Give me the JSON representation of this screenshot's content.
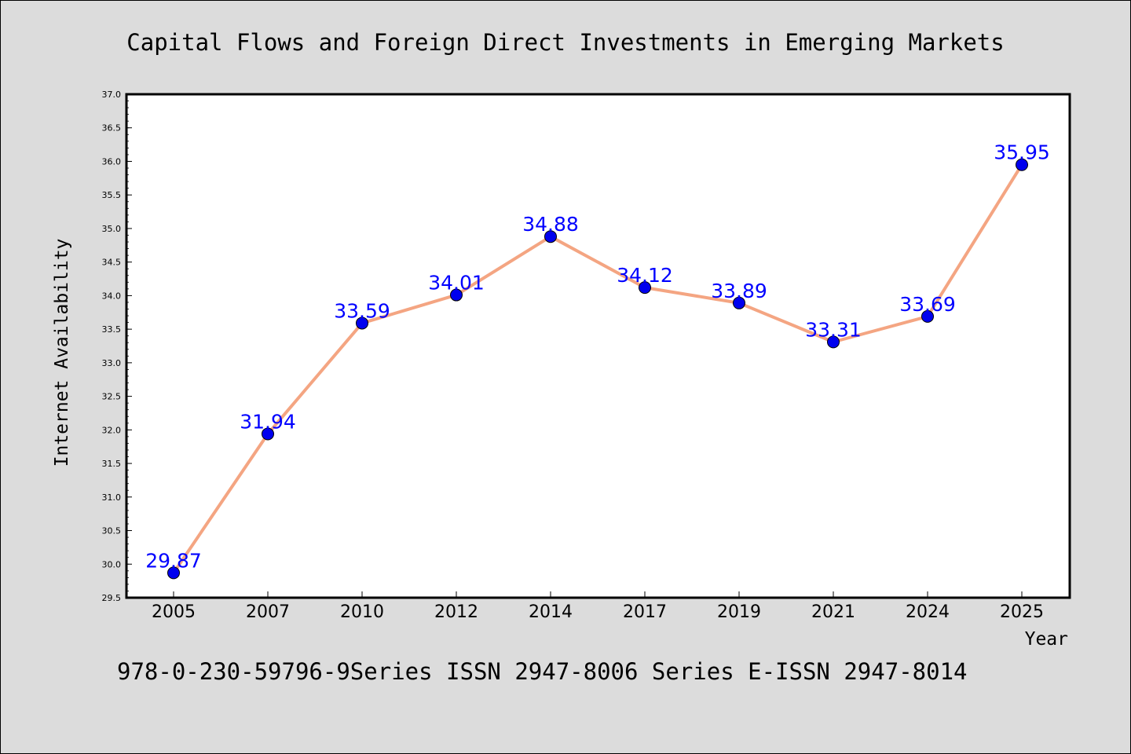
{
  "chart_data": {
    "type": "line",
    "title": "Capital Flows and Foreign Direct Investments in Emerging Markets",
    "xlabel": "Year",
    "ylabel": "Internet Availability",
    "categories": [
      "2005",
      "2007",
      "2010",
      "2012",
      "2014",
      "2017",
      "2019",
      "2021",
      "2024",
      "2025"
    ],
    "series": [
      {
        "values": [
          29.87,
          31.94,
          33.59,
          34.01,
          34.88,
          34.12,
          33.89,
          33.31,
          33.69,
          35.95
        ],
        "value_labels": [
          "29.87",
          "31.94",
          "33.59",
          "34.01",
          "34.88",
          "34.12",
          "33.89",
          "33.31",
          "33.69",
          "35.95"
        ]
      }
    ],
    "ylim": [
      29.5,
      37.0
    ],
    "yticks": [
      "29.5",
      "30.0",
      "30.5",
      "31.0",
      "31.5",
      "32.0",
      "32.5",
      "33.0",
      "33.5",
      "34.0",
      "34.5",
      "35.0",
      "35.5",
      "36.0",
      "36.5",
      "37.0"
    ],
    "grid": false,
    "legend": "none",
    "footer": "978-0-230-59796-9Series ISSN 2947-8006 Series E-ISSN 2947-8014",
    "colors": {
      "line": "#f4a582",
      "marker": "#0000ee",
      "label": "#0000ff",
      "background": "#dcdcdc",
      "plot_background": "#ffffff"
    }
  }
}
